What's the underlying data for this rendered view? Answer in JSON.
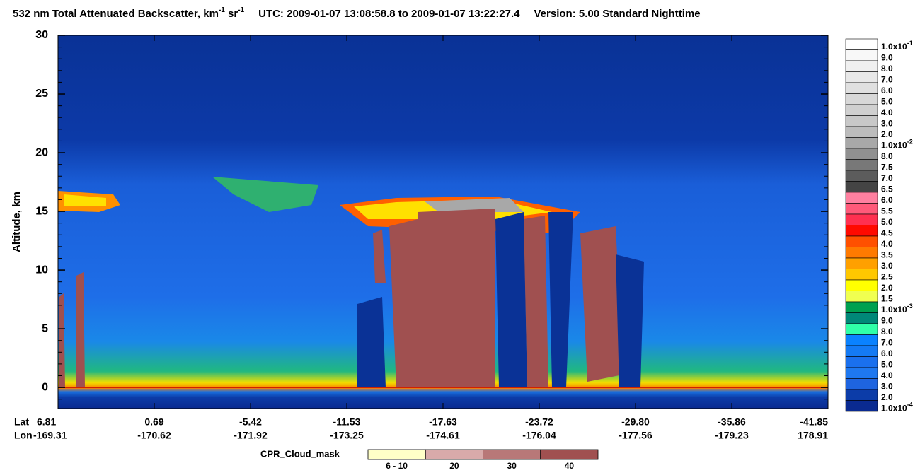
{
  "chart_data": {
    "type": "heatmap",
    "title": [
      "532 nm Total Attenuated Backscatter, km",
      "-1",
      " sr",
      "-1"
    ],
    "utc": "UTC:  2009-01-07 13:08:58.8  to  2009-01-07 13:22:27.4",
    "version": "Version: 5.00  Standard  Nighttime",
    "ylabel": "Altitude, km",
    "ylim": [
      -1.8,
      30
    ],
    "yticks": [
      0,
      5,
      10,
      15,
      20,
      25,
      30
    ],
    "x_row_labels": [
      "Lat",
      "Lon"
    ],
    "lat": [
      6.81,
      0.69,
      -5.42,
      -11.53,
      -17.63,
      -23.72,
      {
        "value": -29.8,
        "label": "-29.80"
      },
      -35.86,
      -41.85
    ],
    "lon": [
      -169.31,
      -170.62,
      -171.92,
      -173.25,
      -174.61,
      -176.04,
      -177.56,
      -179.23,
      178.91
    ],
    "colorbar": [
      {
        "label": "1.0x10",
        "sup": "-1",
        "color": "#ffffff"
      },
      {
        "label": "9.0",
        "color": "#f8f8f8"
      },
      {
        "label": "8.0",
        "color": "#f0f0f0"
      },
      {
        "label": "7.0",
        "color": "#e8e8e8"
      },
      {
        "label": "6.0",
        "color": "#e0e0e0"
      },
      {
        "label": "5.0",
        "color": "#d8d8d8"
      },
      {
        "label": "4.0",
        "color": "#d0d0d0"
      },
      {
        "label": "3.0",
        "color": "#c8c8c8"
      },
      {
        "label": "2.0",
        "color": "#bcbcbc"
      },
      {
        "label": "1.0x10",
        "sup": "-2",
        "color": "#a8a8a8"
      },
      {
        "label": "8.0",
        "color": "#909090"
      },
      {
        "label": "7.5",
        "color": "#787878"
      },
      {
        "label": "7.0",
        "color": "#5c5c5c"
      },
      {
        "label": "6.5",
        "color": "#444444"
      },
      {
        "label": "6.0",
        "color": "#ff80a0"
      },
      {
        "label": "5.5",
        "color": "#ff5a7a"
      },
      {
        "label": "5.0",
        "color": "#ff3050"
      },
      {
        "label": "4.5",
        "color": "#ff0a00"
      },
      {
        "label": "4.0",
        "color": "#ff5000"
      },
      {
        "label": "3.5",
        "color": "#ff7a00"
      },
      {
        "label": "3.0",
        "color": "#ffa000"
      },
      {
        "label": "2.5",
        "color": "#ffc800"
      },
      {
        "label": "2.0",
        "color": "#ffff00"
      },
      {
        "label": "1.5",
        "color": "#f0ff50"
      },
      {
        "label": "1.0x10",
        "sup": "-3",
        "color": "#00a050"
      },
      {
        "label": "9.0",
        "color": "#008878"
      },
      {
        "label": "8.0",
        "color": "#30ffa8"
      },
      {
        "label": "7.0",
        "color": "#0a82ff"
      },
      {
        "label": "6.0",
        "color": "#147af4"
      },
      {
        "label": "5.0",
        "color": "#1a70ee"
      },
      {
        "label": "4.0",
        "color": "#1e78f0"
      },
      {
        "label": "3.0",
        "color": "#1e64e0"
      },
      {
        "label": "2.0",
        "color": "#0c3ca8"
      },
      {
        "label": "1.0x10",
        "sup": "-4",
        "color": "#0a2a90"
      }
    ],
    "cloud_mask": {
      "label": "CPR_Cloud_mask",
      "items": [
        {
          "label": "6 - 10",
          "color": "#ffffc8"
        },
        {
          "label": "20",
          "color": "#d8aaaa"
        },
        {
          "label": "30",
          "color": "#b87878"
        },
        {
          "label": "40",
          "color": "#a05050"
        }
      ]
    }
  }
}
